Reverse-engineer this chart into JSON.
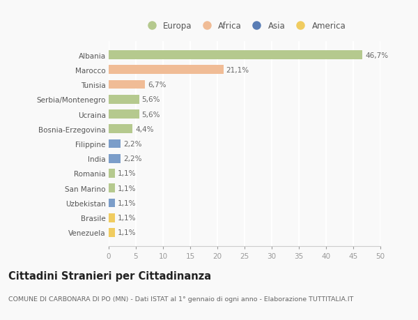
{
  "categories": [
    "Albania",
    "Marocco",
    "Tunisia",
    "Serbia/Montenegro",
    "Ucraina",
    "Bosnia-Erzegovina",
    "Filippine",
    "India",
    "Romania",
    "San Marino",
    "Uzbekistan",
    "Brasile",
    "Venezuela"
  ],
  "values": [
    46.7,
    21.1,
    6.7,
    5.6,
    5.6,
    4.4,
    2.2,
    2.2,
    1.1,
    1.1,
    1.1,
    1.1,
    1.1
  ],
  "labels": [
    "46,7%",
    "21,1%",
    "6,7%",
    "5,6%",
    "5,6%",
    "4,4%",
    "2,2%",
    "2,2%",
    "1,1%",
    "1,1%",
    "1,1%",
    "1,1%",
    "1,1%"
  ],
  "colors": [
    "#b5c98e",
    "#f0bc96",
    "#f0bc96",
    "#b5c98e",
    "#b5c98e",
    "#b5c98e",
    "#7b9dc9",
    "#7b9dc9",
    "#b5c98e",
    "#b5c98e",
    "#7b9dc9",
    "#f0cc60",
    "#f0cc60"
  ],
  "legend_labels": [
    "Europa",
    "Africa",
    "Asia",
    "America"
  ],
  "legend_colors": [
    "#b5c98e",
    "#f0bc96",
    "#5a7db5",
    "#f0cc60"
  ],
  "xlim": [
    0,
    50
  ],
  "xticks": [
    0,
    5,
    10,
    15,
    20,
    25,
    30,
    35,
    40,
    45,
    50
  ],
  "title": "Cittadini Stranieri per Cittadinanza",
  "subtitle": "COMUNE DI CARBONARA DI PO (MN) - Dati ISTAT al 1° gennaio di ogni anno - Elaborazione TUTTITALIA.IT",
  "background_color": "#f9f9f9",
  "grid_color": "#ffffff",
  "bar_height": 0.6,
  "label_fontsize": 7.5,
  "tick_fontsize": 7.5,
  "ytick_fontsize": 7.5,
  "title_fontsize": 10.5,
  "subtitle_fontsize": 6.8
}
